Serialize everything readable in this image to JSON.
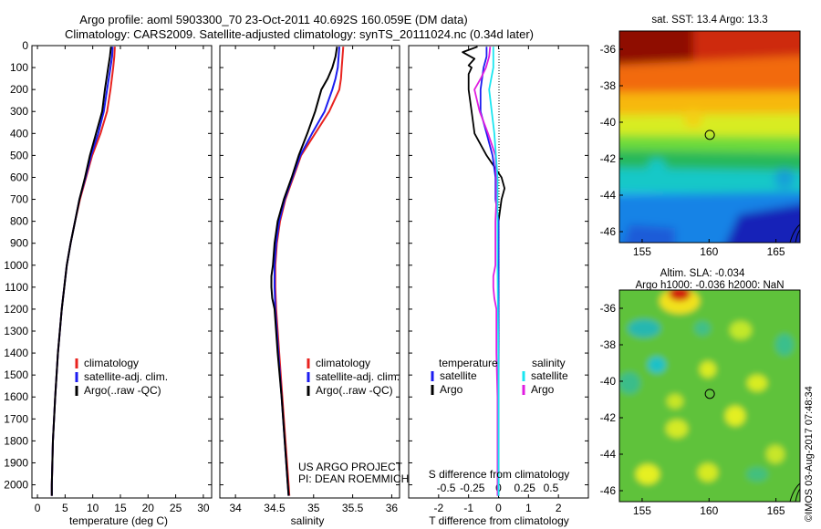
{
  "header": {
    "title_line1": "Argo profile: aoml 5903300_70 23-Oct-2011 40.692S 160.059E (DM data)",
    "title_line2": "Climatology: CARS2009. Satellite-adjusted climatology: synTS_20111024.nc (0.34d later)"
  },
  "colors": {
    "climatology": "#e8231f",
    "satellite": "#1c1cf0",
    "argo": "#000000",
    "argo_salinity_diff": "#e01de0",
    "satellite_salinity_diff": "#19e6f0"
  },
  "chart_data": [
    {
      "type": "line",
      "id": "temperature-profile",
      "xlabel": "temperature (deg C)",
      "ylabel": "",
      "xlim": [
        -1,
        31.5
      ],
      "ylim": [
        2060,
        0
      ],
      "x_ticks": [
        0,
        5,
        10,
        15,
        20,
        25,
        30
      ],
      "y_ticks": [
        0,
        100,
        200,
        300,
        400,
        500,
        600,
        700,
        800,
        900,
        1000,
        1100,
        1200,
        1300,
        1400,
        1500,
        1600,
        1700,
        1800,
        1900,
        2000
      ],
      "legend": [
        "climatology",
        "satellite-adj. clim.",
        "Argo(..raw -QC)"
      ],
      "series": [
        {
          "name": "climatology",
          "pressure": [
            5,
            50,
            100,
            200,
            300,
            400,
            500,
            600,
            700,
            800,
            900,
            1000,
            1200,
            1400,
            1600,
            1800,
            2000,
            2050
          ],
          "values": [
            14.0,
            13.9,
            13.7,
            13.2,
            12.6,
            11.4,
            9.9,
            8.8,
            7.7,
            6.8,
            6.0,
            5.3,
            4.4,
            3.7,
            3.2,
            2.8,
            2.6,
            2.6
          ]
        },
        {
          "name": "satellite",
          "pressure": [
            5,
            50,
            100,
            200,
            300,
            400,
            500,
            600,
            700,
            800,
            900,
            1000,
            1200,
            1400,
            1600,
            1800,
            2000,
            2050
          ],
          "values": [
            13.6,
            13.5,
            13.2,
            12.6,
            12.0,
            11.0,
            9.7,
            8.7,
            7.6,
            6.8,
            6.0,
            5.3,
            4.4,
            3.7,
            3.2,
            2.8,
            2.6,
            2.6
          ]
        },
        {
          "name": "argo",
          "pressure": [
            5,
            50,
            100,
            200,
            300,
            400,
            500,
            600,
            700,
            800,
            900,
            1000,
            1200,
            1400,
            1600,
            1800,
            2000,
            2050
          ],
          "values": [
            13.3,
            13.1,
            12.8,
            12.2,
            11.7,
            10.6,
            9.5,
            8.6,
            7.6,
            6.8,
            6.0,
            5.3,
            4.4,
            3.7,
            3.2,
            2.8,
            2.6,
            2.6
          ]
        }
      ]
    },
    {
      "type": "line",
      "id": "salinity-profile",
      "xlabel": "salinity",
      "xlim": [
        33.8,
        36.1
      ],
      "ylim": [
        2060,
        0
      ],
      "x_ticks": [
        34,
        34.5,
        35,
        35.5,
        36
      ],
      "legend": [
        "climatology",
        "satellite-adj. clim.",
        "Argo(..raw -QC)"
      ],
      "annotation_line1": "US ARGO PROJECT",
      "annotation_line2": "PI: DEAN ROEMMICH",
      "series": [
        {
          "name": "climatology",
          "pressure": [
            5,
            50,
            100,
            150,
            200,
            300,
            400,
            500,
            600,
            700,
            800,
            900,
            1000,
            1100,
            1200,
            1400,
            1600,
            1800,
            2000,
            2050
          ],
          "values": [
            35.38,
            35.37,
            35.36,
            35.35,
            35.33,
            35.2,
            35.02,
            34.84,
            34.74,
            34.64,
            34.57,
            34.53,
            34.51,
            34.51,
            34.52,
            34.56,
            34.6,
            34.64,
            34.68,
            34.69
          ]
        },
        {
          "name": "satellite",
          "pressure": [
            5,
            50,
            100,
            150,
            200,
            300,
            400,
            500,
            600,
            700,
            800,
            900,
            1000,
            1100,
            1200,
            1400,
            1600,
            1800,
            2000,
            2050
          ],
          "values": [
            35.33,
            35.32,
            35.31,
            35.28,
            35.24,
            35.14,
            34.98,
            34.83,
            34.73,
            34.63,
            34.56,
            34.52,
            34.5,
            34.5,
            34.51,
            34.55,
            34.59,
            34.63,
            34.67,
            34.68
          ]
        },
        {
          "name": "argo",
          "pressure": [
            5,
            50,
            100,
            150,
            200,
            300,
            400,
            500,
            600,
            700,
            800,
            900,
            1000,
            1050,
            1100,
            1150,
            1200,
            1400,
            1600,
            1800,
            2000,
            2050
          ],
          "values": [
            35.3,
            35.28,
            35.24,
            35.18,
            35.1,
            35.02,
            34.92,
            34.81,
            34.72,
            34.62,
            34.54,
            34.5,
            34.48,
            34.46,
            34.46,
            34.47,
            34.5,
            34.54,
            34.59,
            34.63,
            34.67,
            34.68
          ]
        }
      ]
    },
    {
      "type": "line",
      "id": "difference-profile",
      "xlabel": "T difference from climatology",
      "xlabel_top": "S difference from climatology",
      "xlim": [
        -3.0,
        3.0
      ],
      "ylim": [
        2060,
        0
      ],
      "x_ticks_T": [
        -2,
        -1,
        0,
        1,
        2
      ],
      "x_ticks_S": [
        -0.5,
        -0.25,
        0,
        0.25,
        0.5
      ],
      "legend_heading_temperature": "temperature",
      "legend_heading_salinity": "salinity",
      "legend": [
        "satellite",
        "Argo",
        "satellite",
        "Argo"
      ],
      "series": [
        {
          "name": "temperature satellite",
          "pressure": [
            5,
            50,
            100,
            200,
            300,
            400,
            500,
            600,
            700,
            800,
            900,
            1000,
            1500,
            2050
          ],
          "values": [
            -0.4,
            -0.4,
            -0.5,
            -0.6,
            -0.6,
            -0.4,
            -0.2,
            -0.1,
            -0.1,
            0,
            0,
            0,
            0,
            0
          ]
        },
        {
          "name": "temperature Argo",
          "pressure": [
            5,
            30,
            60,
            90,
            100,
            130,
            200,
            300,
            400,
            500,
            600,
            650,
            700,
            800,
            900,
            1000,
            1500,
            2050
          ],
          "values": [
            -0.7,
            -1.2,
            -0.8,
            -1.0,
            -0.9,
            -1.0,
            -1.0,
            -0.9,
            -0.8,
            -0.4,
            0.1,
            0.2,
            0.1,
            0,
            0,
            0,
            0,
            0
          ]
        },
        {
          "name": "salinity satellite",
          "pressure": [
            5,
            50,
            100,
            200,
            400,
            600,
            800,
            1000,
            1500,
            2050
          ],
          "values": [
            -0.05,
            -0.05,
            -0.05,
            -0.09,
            -0.04,
            -0.01,
            -0.01,
            -0.01,
            0,
            0
          ]
        },
        {
          "name": "salinity Argo",
          "pressure": [
            5,
            50,
            100,
            150,
            200,
            300,
            400,
            500,
            600,
            700,
            800,
            900,
            1000,
            1050,
            1100,
            1150,
            1200,
            1400,
            1600,
            1800,
            2000,
            2050
          ],
          "values": [
            -0.08,
            -0.09,
            -0.12,
            -0.17,
            -0.23,
            -0.18,
            -0.1,
            -0.03,
            -0.02,
            -0.02,
            -0.03,
            -0.03,
            -0.03,
            -0.05,
            -0.05,
            -0.04,
            -0.02,
            -0.02,
            -0.01,
            -0.01,
            -0.01,
            -0.01
          ]
        }
      ]
    },
    {
      "type": "heatmap",
      "id": "sst-map",
      "title": "sat. SST: 13.4  Argo: 13.3",
      "xlim": [
        153.3,
        166.8
      ],
      "ylim": [
        -46.6,
        -35
      ],
      "x_ticks": [
        155,
        160,
        165
      ],
      "y_ticks": [
        -36,
        -38,
        -40,
        -42,
        -44,
        -46
      ],
      "marker": {
        "lon": 160.059,
        "lat": -40.692
      }
    },
    {
      "type": "heatmap",
      "id": "sla-map",
      "title_line1": "Altim. SLA: -0.034",
      "title_line2": "Argo h1000: -0.036 h2000: NaN",
      "xlim": [
        153.3,
        166.8
      ],
      "ylim": [
        -46.6,
        -35
      ],
      "x_ticks": [
        155,
        160,
        165
      ],
      "y_ticks": [
        -36,
        -38,
        -40,
        -42,
        -44,
        -46
      ],
      "marker": {
        "lon": 160.059,
        "lat": -40.692
      }
    }
  ],
  "credit": "©IMOS 03-Aug-2017 07:48:34"
}
